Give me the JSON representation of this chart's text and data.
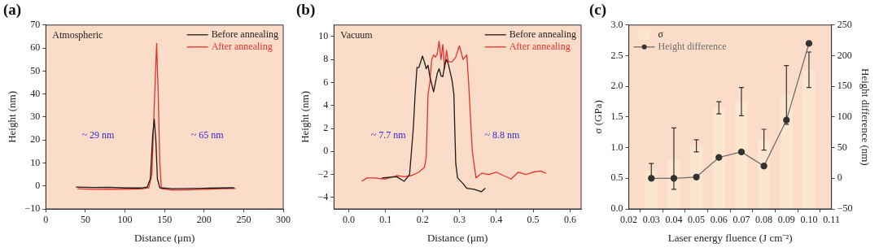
{
  "chart_data": [
    {
      "type": "line",
      "title": "(a)",
      "xlabel": "Distance (μm)",
      "ylabel": "Height (nm)",
      "xlim": [
        0,
        300
      ],
      "xticks": [
        0,
        50,
        100,
        150,
        200,
        250,
        300
      ],
      "ylim": [
        -10,
        70
      ],
      "yticks": [
        {
          "value": -10,
          "label": "−10"
        },
        0,
        10,
        20,
        30,
        40,
        50,
        60,
        70
      ],
      "legend": "top right",
      "annotations": [
        "Atmospheric",
        "~ 29 nm",
        "~ 65 nm"
      ],
      "series": [
        {
          "name": "Before annealing",
          "color": "#1a1a1a",
          "x": [
            38,
            60,
            80,
            100,
            120,
            128,
            132,
            135,
            137,
            139,
            141,
            144,
            160,
            180,
            200,
            220,
            238
          ],
          "values": [
            -0.5,
            -0.7,
            -0.6,
            -0.9,
            -0.9,
            -0.5,
            3,
            22,
            29,
            20,
            3,
            -0.8,
            -1.2,
            -1.1,
            -1.0,
            -0.9,
            -0.8
          ]
        },
        {
          "name": "After annealing",
          "color": "#e8302a",
          "x": [
            40,
            60,
            80,
            100,
            120,
            130,
            134,
            137,
            140,
            142,
            144,
            146,
            160,
            180,
            200,
            220,
            240
          ],
          "values": [
            -1.2,
            -1.5,
            -1.4,
            -1.5,
            -1.3,
            -0.8,
            5,
            35,
            62,
            40,
            10,
            -1.2,
            -1.8,
            -1.7,
            -1.5,
            -1.2,
            -1.1
          ]
        }
      ]
    },
    {
      "type": "line",
      "title": "(b)",
      "xlabel": "Distance (μm)",
      "ylabel": "Height (nm)",
      "xlim": [
        -0.04,
        0.63
      ],
      "xticks": [
        {
          "value": 0,
          "label": "0.0"
        },
        0.1,
        0.2,
        0.3,
        0.4,
        0.5,
        0.6
      ],
      "ylim": [
        -5,
        11
      ],
      "yticks": [
        {
          "value": -4,
          "label": "−4"
        },
        {
          "value": -2,
          "label": "−2"
        },
        0,
        2,
        4,
        6,
        8,
        10
      ],
      "legend": "top right",
      "annotations": [
        "Vacuum",
        "~ 7.7 nm",
        "~ 8.8 nm"
      ],
      "series": [
        {
          "name": "Before annealing",
          "color": "#1a1a1a",
          "x": [
            0.09,
            0.13,
            0.15,
            0.165,
            0.175,
            0.18,
            0.185,
            0.19,
            0.2,
            0.205,
            0.21,
            0.215,
            0.22,
            0.23,
            0.24,
            0.245,
            0.25,
            0.255,
            0.26,
            0.265,
            0.27,
            0.28,
            0.285,
            0.29,
            0.295,
            0.31,
            0.32,
            0.34,
            0.36,
            0.37
          ],
          "values": [
            -2.3,
            -2.2,
            -2.6,
            -2.0,
            2,
            5,
            7.3,
            7.3,
            8.3,
            7.8,
            7.2,
            7.5,
            6.5,
            5.2,
            6.8,
            7.2,
            6.6,
            6.5,
            7.5,
            8.0,
            7.6,
            6.2,
            5,
            -1,
            -2.3,
            -2.8,
            -3.2,
            -3.3,
            -3.5,
            -3.2
          ]
        },
        {
          "name": "After annealing",
          "color": "#e8302a",
          "x": [
            0.035,
            0.05,
            0.07,
            0.1,
            0.13,
            0.15,
            0.17,
            0.19,
            0.205,
            0.21,
            0.215,
            0.22,
            0.225,
            0.23,
            0.235,
            0.24,
            0.245,
            0.25,
            0.255,
            0.26,
            0.265,
            0.27,
            0.28,
            0.29,
            0.3,
            0.31,
            0.32,
            0.325,
            0.335,
            0.345,
            0.36,
            0.38,
            0.4,
            0.42,
            0.44,
            0.46,
            0.48,
            0.5,
            0.52,
            0.535
          ],
          "values": [
            -2.6,
            -2.3,
            -2.3,
            -2.4,
            -2.1,
            -2.2,
            -2.1,
            -1.8,
            -1.4,
            -0.5,
            5,
            6.0,
            8.0,
            8.4,
            8.2,
            8.5,
            9.6,
            8.0,
            9.3,
            7.2,
            8.8,
            7.8,
            7.8,
            8.2,
            9.2,
            8.0,
            8.4,
            6,
            0,
            -2.3,
            -1.9,
            -2.0,
            -1.8,
            -2.1,
            -2.4,
            -1.8,
            -2.0,
            -1.8,
            -1.7,
            -1.9
          ]
        }
      ]
    },
    {
      "type": "bar",
      "title": "(c)",
      "xlabel": "Laser energy fluence (J cm⁻²)",
      "ylabel": "σ (GPa)",
      "y2label": "Height difference (nm)",
      "x": [
        0.03,
        0.04,
        0.05,
        0.06,
        0.07,
        0.08,
        0.09,
        0.1
      ],
      "xlim": [
        0.02,
        0.11
      ],
      "xticks": [
        0.02,
        0.03,
        0.04,
        0.05,
        0.06,
        0.07,
        0.08,
        0.09,
        {
          "value": 0.1,
          "label": "0.10"
        },
        0.11
      ],
      "ylim": [
        0,
        3
      ],
      "yticks": [
        {
          "value": 0,
          "label": "0.0"
        },
        0.5,
        {
          "value": 1,
          "label": "1.0"
        },
        1.5,
        {
          "value": 2,
          "label": "2.0"
        },
        2.5,
        {
          "value": 3,
          "label": "3.0"
        }
      ],
      "y2lim": [
        -50,
        250
      ],
      "y2ticks": [
        {
          "value": -50,
          "label": "−50"
        },
        0,
        50,
        100,
        150,
        200,
        250
      ],
      "legend": "top left",
      "marker": "circle",
      "series": [
        {
          "name": "σ",
          "type": "bar",
          "color": "#fde6d0",
          "values": [
            0.62,
            0.82,
            1.03,
            1.65,
            1.75,
            1.13,
            1.86,
            2.27
          ],
          "errors": [
            0.12,
            0.5,
            0.1,
            0.1,
            0.23,
            0.17,
            0.48,
            0.29
          ]
        },
        {
          "name": "Height difference",
          "type": "line",
          "axis": "y2",
          "color": "#6e6e6e",
          "values": [
            0,
            0,
            2,
            34,
            43,
            20,
            95,
            220
          ]
        }
      ]
    }
  ]
}
